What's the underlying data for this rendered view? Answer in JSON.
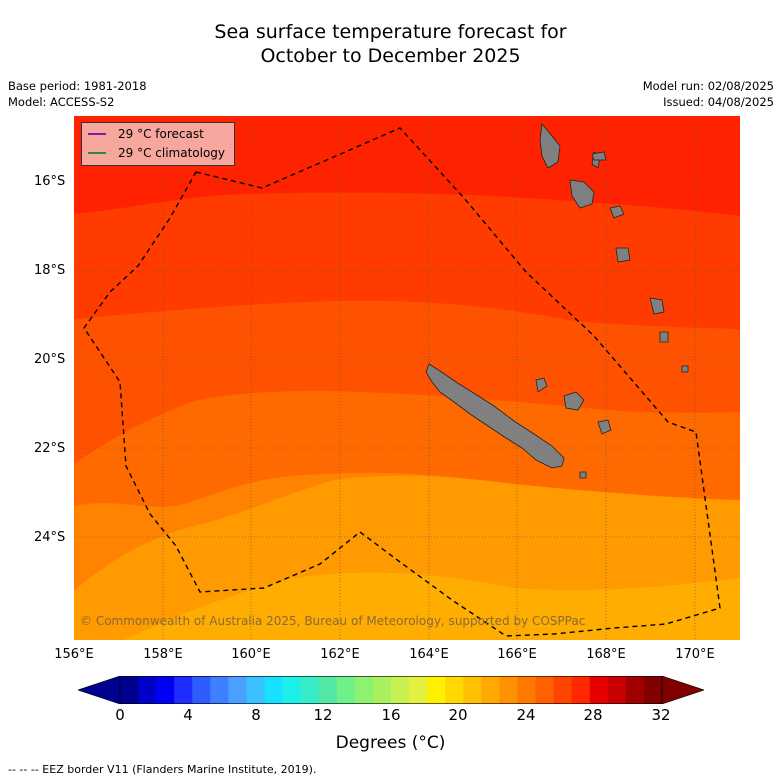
{
  "title_line1": "Sea surface temperature forecast for",
  "title_line2": "October to December 2025",
  "base_period": "Base period: 1981-2018",
  "model": "Model: ACCESS-S2",
  "model_run": "Model run: 02/08/2025",
  "issued": "Issued: 04/08/2025",
  "legend": {
    "forecast": "29 °C  forecast",
    "forecast_color": "#7a1fa0",
    "climatology": "29 °C  climatology",
    "climatology_color": "#2e8b2e"
  },
  "y_ticks": [
    "16°S",
    "18°S",
    "20°S",
    "22°S",
    "24°S"
  ],
  "x_ticks": [
    "156°E",
    "158°E",
    "160°E",
    "162°E",
    "164°E",
    "166°E",
    "168°E",
    "170°E"
  ],
  "colorbar": {
    "ticks": [
      "0",
      "4",
      "8",
      "12",
      "16",
      "20",
      "24",
      "28",
      "32"
    ],
    "label": "Degrees (°C)",
    "colors": [
      "#00008f",
      "#0000c8",
      "#0000f5",
      "#1e2cff",
      "#2f5cff",
      "#3f80ff",
      "#4aa0ff",
      "#38c0ff",
      "#18e0ff",
      "#1cf0e8",
      "#38ecc8",
      "#54e8a4",
      "#70f088",
      "#8cf270",
      "#a8f060",
      "#c8f050",
      "#e4f040",
      "#fff000",
      "#ffd800",
      "#ffc000",
      "#ffa800",
      "#ff9000",
      "#ff7800",
      "#ff6000",
      "#ff4400",
      "#ff2800",
      "#e80000",
      "#c80000",
      "#a00000",
      "#800000"
    ],
    "under_color": "#00008f",
    "over_color": "#800000"
  },
  "map_colors": {
    "band1": "#ff2200",
    "band2": "#ff3b00",
    "band3": "#ff5200",
    "band4": "#ff6a00",
    "band5": "#ff8200",
    "band6": "#ff9a00",
    "band7": "#ffad00",
    "land": "#808080"
  },
  "copyright": "© Commonwealth of Australia 2025, Bureau of Meteorology, supported by COSPPac",
  "footer": "--  --  -- EEZ border V11 (Flanders Marine Institute, 2019)."
}
